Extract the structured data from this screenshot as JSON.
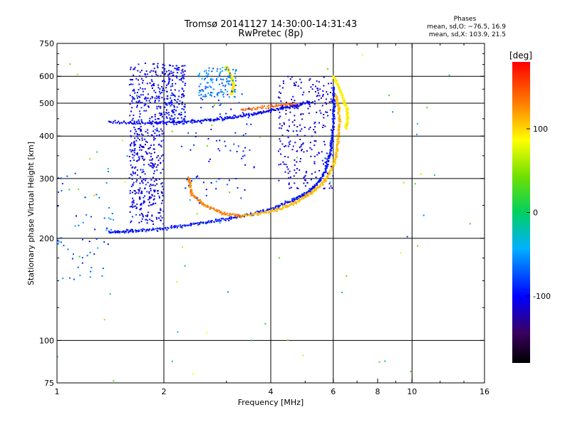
{
  "title": {
    "line1": "Tromsø 20141127 14:30:00-14:31:43",
    "line2": "RwPretec (8p)"
  },
  "stats": {
    "header": "Phases",
    "line_o": "mean, sd,O: −76.5, 16.9",
    "line_x": "mean, sd,X: 103.9, 21.5"
  },
  "chart_data": {
    "type": "scatter",
    "xlabel": "Frequency [MHz]",
    "ylabel": "Stationary phase Virtual Height [km]",
    "x_scale": "log",
    "y_scale": "log",
    "xlim": [
      1,
      16
    ],
    "ylim": [
      75,
      750
    ],
    "x_ticks": [
      1,
      2,
      4,
      6,
      8,
      10,
      16
    ],
    "x_tick_labels": [
      "1",
      "2",
      "4",
      "6",
      "8",
      "10",
      "16"
    ],
    "x_gridlines": [
      2,
      4,
      6,
      10
    ],
    "y_ticks": [
      75,
      100,
      200,
      300,
      400,
      500,
      600,
      750
    ],
    "y_tick_labels": [
      "75",
      "100",
      "200",
      "300",
      "400",
      "500",
      "600",
      "750"
    ],
    "y_gridlines": [
      100,
      200,
      300,
      400,
      500,
      600
    ],
    "grid": true,
    "colorbar": {
      "label": "[deg]",
      "min": -180,
      "max": 180,
      "ticks": [
        100,
        0,
        -100
      ],
      "tick_labels": [
        "100",
        "0",
        "-100"
      ]
    },
    "traces": [
      {
        "name": "o-mode lower trace",
        "phase": -95,
        "spread": 2,
        "points": [
          [
            1.4,
            208
          ],
          [
            1.6,
            210
          ],
          [
            1.9,
            212
          ],
          [
            2.3,
            218
          ],
          [
            2.8,
            225
          ],
          [
            3.3,
            232
          ],
          [
            4.0,
            243
          ],
          [
            4.6,
            258
          ],
          [
            5.0,
            270
          ],
          [
            5.4,
            288
          ],
          [
            5.7,
            315
          ],
          [
            5.9,
            360
          ],
          [
            6.0,
            420
          ],
          [
            6.02,
            500
          ],
          [
            6.0,
            560
          ]
        ]
      },
      {
        "name": "x-mode lower trace",
        "phase": 110,
        "spread": 2,
        "points": [
          [
            3.3,
            232
          ],
          [
            3.8,
            237
          ],
          [
            4.3,
            245
          ],
          [
            4.8,
            258
          ],
          [
            5.2,
            272
          ],
          [
            5.6,
            290
          ],
          [
            5.9,
            315
          ],
          [
            6.1,
            345
          ],
          [
            6.2,
            390
          ],
          [
            6.25,
            440
          ],
          [
            6.2,
            490
          ],
          [
            6.1,
            530
          ]
        ]
      },
      {
        "name": "x-mode loop",
        "phase": 130,
        "spread": 2,
        "points": [
          [
            2.35,
            300
          ],
          [
            2.4,
            270
          ],
          [
            2.6,
            250
          ],
          [
            2.9,
            238
          ],
          [
            3.3,
            232
          ]
        ]
      },
      {
        "name": "x-mode outer trace",
        "phase": 90,
        "spread": 2,
        "points": [
          [
            6.0,
            600
          ],
          [
            6.2,
            560
          ],
          [
            6.4,
            520
          ],
          [
            6.55,
            480
          ],
          [
            6.6,
            450
          ],
          [
            6.5,
            420
          ]
        ]
      },
      {
        "name": "o-mode upper trace",
        "phase": -100,
        "spread": 2,
        "points": [
          [
            1.4,
            440
          ],
          [
            1.8,
            438
          ],
          [
            2.2,
            440
          ],
          [
            2.6,
            445
          ],
          [
            3.0,
            452
          ],
          [
            3.5,
            462
          ],
          [
            4.0,
            475
          ],
          [
            4.6,
            490
          ],
          [
            5.2,
            505
          ]
        ]
      },
      {
        "name": "x-mode upper trace",
        "phase": 140,
        "spread": 1,
        "points": [
          [
            3.3,
            480
          ],
          [
            3.6,
            482
          ],
          [
            4.0,
            488
          ],
          [
            4.4,
            495
          ],
          [
            4.7,
            500
          ]
        ]
      },
      {
        "name": "x-mode spread top",
        "phase": 95,
        "spread": 3,
        "points": [
          [
            3.0,
            640
          ],
          [
            3.1,
            600
          ],
          [
            3.15,
            560
          ],
          [
            3.1,
            530
          ]
        ]
      }
    ],
    "clusters": [
      {
        "name": "spread F block",
        "phase": -105,
        "spread": 30,
        "count": 520,
        "xlim": [
          1.6,
          2.0
        ],
        "ylim": [
          220,
          660
        ]
      },
      {
        "name": "spread F block 2",
        "phase": -100,
        "spread": 30,
        "count": 180,
        "xlim": [
          2.0,
          2.3
        ],
        "ylim": [
          430,
          650
        ]
      },
      {
        "name": "upper patch",
        "phase": -60,
        "spread": 35,
        "count": 120,
        "xlim": [
          2.5,
          3.2
        ],
        "ylim": [
          520,
          640
        ]
      },
      {
        "name": "low frequency spread",
        "phase": -70,
        "spread": 45,
        "count": 60,
        "xlim": [
          1.0,
          1.45
        ],
        "ylim": [
          150,
          320
        ]
      },
      {
        "name": "mid spread",
        "phase": -90,
        "spread": 40,
        "count": 80,
        "xlim": [
          2.3,
          3.6
        ],
        "ylim": [
          250,
          560
        ]
      },
      {
        "name": "inner band",
        "phase": -110,
        "spread": 25,
        "count": 260,
        "xlim": [
          4.2,
          6.0
        ],
        "ylim": [
          280,
          600
        ]
      },
      {
        "name": "noise",
        "phase": 20,
        "spread": 150,
        "count": 70,
        "xlim": [
          1.0,
          15.5
        ],
        "ylim": [
          76,
          700
        ]
      }
    ]
  }
}
